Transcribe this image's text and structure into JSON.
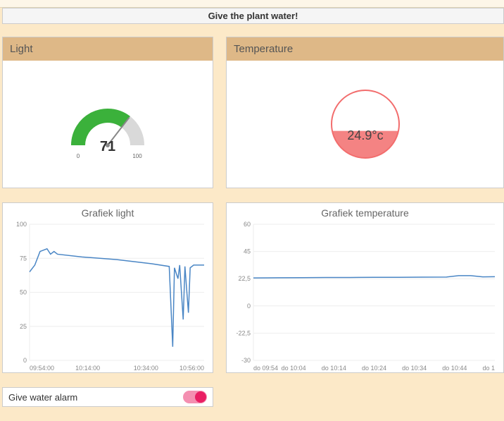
{
  "alert_text": "Give the plant water!",
  "light_panel": {
    "title": "Light",
    "gauge": {
      "value": 71,
      "min_label": "0",
      "max_label": "100",
      "arc_active_color": "#3bb13b",
      "arc_bg_color": "#d9d9d9",
      "needle_color": "#888",
      "text_color": "#333"
    },
    "chart": {
      "title": "Grafiek light",
      "y_ticks": [
        "100",
        "75",
        "50",
        "25",
        "0"
      ],
      "x_ticks": [
        "09:54:00",
        "10:14:00",
        "10:34:00",
        "10:56:00"
      ],
      "line_color": "#4a86c5",
      "grid_color": "#eee",
      "points": [
        [
          0,
          65
        ],
        [
          3,
          70
        ],
        [
          6,
          80
        ],
        [
          10,
          82
        ],
        [
          12,
          78
        ],
        [
          14,
          80
        ],
        [
          16,
          78
        ],
        [
          30,
          76
        ],
        [
          50,
          74
        ],
        [
          70,
          71
        ],
        [
          80,
          69
        ],
        [
          82,
          10
        ],
        [
          83,
          68
        ],
        [
          85,
          60
        ],
        [
          86,
          70
        ],
        [
          88,
          30
        ],
        [
          89,
          69
        ],
        [
          91,
          35
        ],
        [
          92,
          68
        ],
        [
          94,
          70
        ],
        [
          100,
          70
        ]
      ]
    }
  },
  "temp_panel": {
    "title": "Temperature",
    "orb": {
      "value_text": "24.9°c",
      "border_color": "#f26d6d",
      "fill_color": "#f26d6d",
      "fill_opacity": 0.85,
      "fill_level": 0.4,
      "text_color": "#444"
    },
    "chart": {
      "title": "Grafiek temperature",
      "y_ticks": [
        "60",
        "45",
        "22,5",
        "0",
        "-22,5",
        "-30"
      ],
      "x_ticks": [
        "do 09:54",
        "do 10:04",
        "do 10:14",
        "do 10:24",
        "do 10:34",
        "do 10:44",
        "do 1"
      ],
      "line_color": "#4a86c5",
      "grid_color": "#eee",
      "points": [
        [
          0,
          24.5
        ],
        [
          10,
          24.6
        ],
        [
          20,
          24.7
        ],
        [
          30,
          24.8
        ],
        [
          40,
          24.8
        ],
        [
          50,
          24.9
        ],
        [
          60,
          24.9
        ],
        [
          70,
          25.0
        ],
        [
          80,
          25.1
        ],
        [
          85,
          26
        ],
        [
          90,
          26
        ],
        [
          95,
          25.2
        ],
        [
          100,
          25.3
        ]
      ],
      "y_min": -30,
      "y_max": 60
    }
  },
  "toggle": {
    "label": "Give water alarm",
    "on": true
  }
}
